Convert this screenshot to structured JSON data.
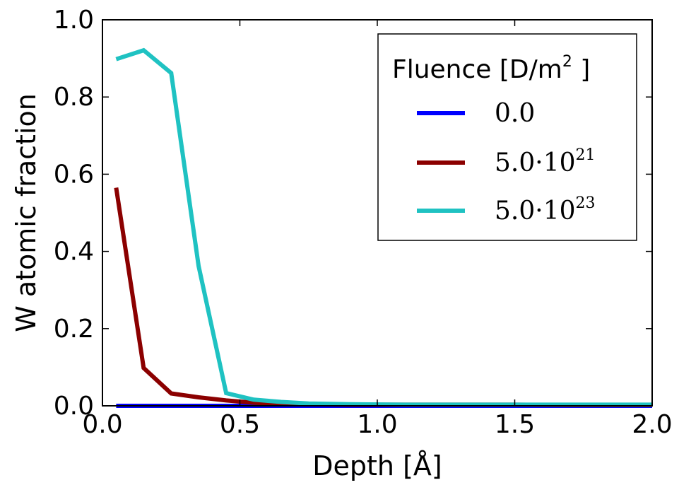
{
  "chart_data": {
    "type": "line",
    "title": "",
    "xlabel": "Depth [Å]",
    "ylabel": "W atomic fraction",
    "xlim": [
      0.0,
      2.0
    ],
    "ylim": [
      0.0,
      1.0
    ],
    "xticks": [
      "0.0",
      "0.5",
      "1.0",
      "1.5",
      "2.0"
    ],
    "yticks": [
      "0.0",
      "0.2",
      "0.4",
      "0.6",
      "0.8",
      "1.0"
    ],
    "grid": false,
    "legend": {
      "placement": "top-right",
      "title_main": "Fluence [D/m",
      "title_sup": "2",
      "title_end": " ]"
    },
    "series": [
      {
        "name": "0.0",
        "name_main": "0.0",
        "name_sup": "",
        "color": "#0000ff",
        "x": [
          0.05,
          0.15,
          0.25,
          0.35,
          0.45,
          0.55,
          0.65,
          0.75,
          0.9,
          1.1,
          1.3,
          1.5,
          1.7,
          1.9,
          2.0
        ],
        "y": [
          0.0,
          0.0,
          0.0,
          0.0,
          0.0,
          0.0,
          0.0,
          0.0,
          0.0,
          0.0,
          0.0,
          0.0,
          0.0,
          0.0,
          0.0
        ]
      },
      {
        "name": "5.0·10^21",
        "name_main": "5.0·10",
        "name_sup": "21",
        "color": "#8b0000",
        "x": [
          0.05,
          0.15,
          0.25,
          0.35,
          0.45,
          0.55,
          0.65,
          0.75,
          0.9,
          1.1,
          1.3,
          1.5,
          1.7,
          1.9,
          2.0
        ],
        "y": [
          0.565,
          0.098,
          0.032,
          0.022,
          0.014,
          0.008,
          0.005,
          0.004,
          0.003,
          0.003,
          0.003,
          0.003,
          0.002,
          0.002,
          0.002
        ]
      },
      {
        "name": "5.0·10^23",
        "name_main": "5.0·10",
        "name_sup": "23",
        "color": "#1fc2c2",
        "x": [
          0.05,
          0.15,
          0.25,
          0.35,
          0.45,
          0.55,
          0.65,
          0.75,
          0.9,
          1.1,
          1.3,
          1.5,
          1.7,
          1.9,
          2.0
        ],
        "y": [
          0.898,
          0.921,
          0.862,
          0.362,
          0.033,
          0.016,
          0.01,
          0.006,
          0.004,
          0.003,
          0.003,
          0.003,
          0.003,
          0.003,
          0.003
        ]
      }
    ]
  }
}
